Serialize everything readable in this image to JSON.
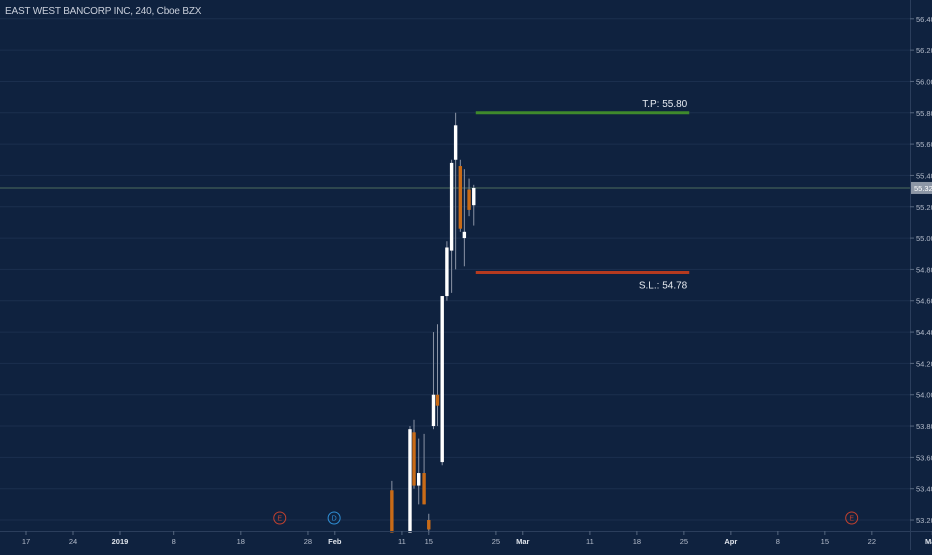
{
  "title": "EAST WEST BANCORP INC, 240, Cboe BZX",
  "colors": {
    "background": "#0f223f",
    "up": "#ffffff",
    "down": "#c96b17",
    "grid": "#1b2f4e",
    "axis_text": "#b4bccb",
    "tp_line": "#3f8a2c",
    "sl_line": "#b53a1f",
    "price_line": "#4d6c5e",
    "price_tag_bg": "#8d97a6"
  },
  "chart_data": {
    "type": "candlestick",
    "title": "EAST WEST BANCORP INC, 240, Cboe BZX",
    "y_ticks": [
      "53.20",
      "53.40",
      "53.60",
      "53.80",
      "54.00",
      "54.20",
      "54.40",
      "54.60",
      "54.80",
      "55.00",
      "55.20",
      "55.40",
      "55.60",
      "55.80",
      "56.00",
      "56.20",
      "56.40"
    ],
    "ylim": [
      53.13,
      56.52
    ],
    "x_ticks": [
      {
        "label": "17",
        "day": 0
      },
      {
        "label": "24",
        "day": 7
      },
      {
        "label": "2019",
        "day": 14,
        "bold": true
      },
      {
        "label": "8",
        "day": 22
      },
      {
        "label": "18",
        "day": 32
      },
      {
        "label": "28",
        "day": 42
      },
      {
        "label": "Feb",
        "day": 46,
        "bold": true
      },
      {
        "label": "11",
        "day": 56
      },
      {
        "label": "15",
        "day": 60
      },
      {
        "label": "25",
        "day": 70
      },
      {
        "label": "Mar",
        "day": 74,
        "bold": true
      },
      {
        "label": "11",
        "day": 84
      },
      {
        "label": "18",
        "day": 91
      },
      {
        "label": "25",
        "day": 98
      },
      {
        "label": "Apr",
        "day": 105,
        "bold": true
      },
      {
        "label": "8",
        "day": 112
      },
      {
        "label": "15",
        "day": 119
      },
      {
        "label": "22",
        "day": 126
      },
      {
        "label": "May",
        "day": 135,
        "bold": true
      }
    ],
    "candles": [
      {
        "day": 54.5,
        "open": 53.39,
        "high": 53.45,
        "low": 53.12,
        "close": 53.12
      },
      {
        "day": 57.2,
        "open": 53.12,
        "high": 53.8,
        "low": 53.12,
        "close": 53.78
      },
      {
        "day": 57.8,
        "open": 53.76,
        "high": 53.84,
        "low": 53.4,
        "close": 53.42
      },
      {
        "day": 58.5,
        "open": 53.42,
        "high": 53.72,
        "low": 53.3,
        "close": 53.5
      },
      {
        "day": 59.3,
        "open": 53.5,
        "high": 53.75,
        "low": 53.3,
        "close": 53.3
      },
      {
        "day": 60.0,
        "open": 53.2,
        "high": 53.24,
        "low": 53.12,
        "close": 53.14
      },
      {
        "day": 60.7,
        "open": 53.8,
        "high": 54.4,
        "low": 53.78,
        "close": 54.0
      },
      {
        "day": 61.3,
        "open": 54.0,
        "high": 54.45,
        "low": 53.8,
        "close": 53.93
      },
      {
        "day": 62.0,
        "open": 53.57,
        "high": 54.63,
        "low": 53.55,
        "close": 54.63
      },
      {
        "day": 62.7,
        "open": 54.63,
        "high": 54.98,
        "low": 54.6,
        "close": 54.94
      },
      {
        "day": 63.4,
        "open": 54.92,
        "high": 55.5,
        "low": 54.65,
        "close": 55.48
      },
      {
        "day": 64.0,
        "open": 55.5,
        "high": 55.8,
        "low": 54.8,
        "close": 55.72
      },
      {
        "day": 64.7,
        "open": 55.46,
        "high": 55.5,
        "low": 55.04,
        "close": 55.06
      },
      {
        "day": 65.3,
        "open": 55.0,
        "high": 55.44,
        "low": 54.82,
        "close": 55.04
      },
      {
        "day": 66.0,
        "open": 55.31,
        "high": 55.38,
        "low": 55.14,
        "close": 55.18
      },
      {
        "day": 66.7,
        "open": 55.21,
        "high": 55.34,
        "low": 55.08,
        "close": 55.32
      }
    ],
    "trade_levels": {
      "take_profit": {
        "label": "T.P: 55.80",
        "value": 55.8,
        "day_start": 67.0,
        "day_end": 98.8
      },
      "stop_loss": {
        "label": "S.L.: 54.78",
        "value": 54.78,
        "day_start": 67.0,
        "day_end": 98.8
      }
    },
    "last_price": {
      "label": "55.32",
      "value": 55.32
    },
    "event_markers": [
      {
        "letter": "E",
        "day": 37.8,
        "color": "#c2412f"
      },
      {
        "letter": "D",
        "day": 45.9,
        "color": "#2f8fd6"
      },
      {
        "letter": "E",
        "day": 123.0,
        "color": "#c2412f"
      }
    ]
  }
}
